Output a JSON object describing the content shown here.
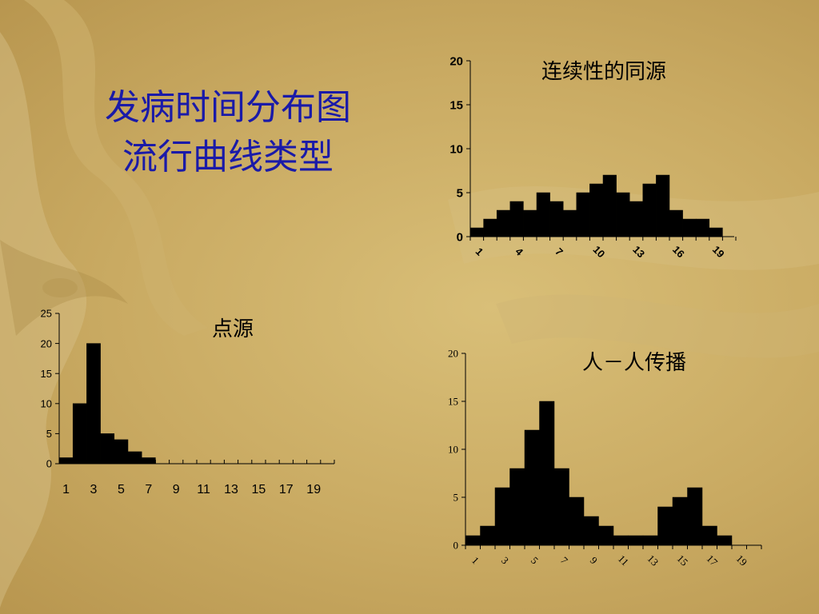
{
  "slide": {
    "title_line1": "发病时间分布图",
    "title_line2": "流行曲线类型"
  },
  "colors": {
    "bar": "#000000",
    "title": "#1a1aa8"
  },
  "chart_data": [
    {
      "id": "continuous",
      "type": "bar",
      "title": "连续性的同源",
      "categories": [
        1,
        2,
        3,
        4,
        5,
        6,
        7,
        8,
        9,
        10,
        11,
        12,
        13,
        14,
        15,
        16,
        17,
        18,
        19,
        20
      ],
      "tick_labels": [
        "1",
        "4",
        "7",
        "10",
        "13",
        "16",
        "19"
      ],
      "values": [
        1,
        2,
        3,
        4,
        3,
        5,
        4,
        3,
        5,
        6,
        7,
        5,
        4,
        6,
        7,
        3,
        2,
        2,
        1,
        0
      ],
      "ylim": [
        0,
        20
      ],
      "yticks": [
        0,
        5,
        10,
        15,
        20
      ]
    },
    {
      "id": "point",
      "type": "bar",
      "title": "点源",
      "categories": [
        1,
        2,
        3,
        4,
        5,
        6,
        7,
        8,
        9,
        10,
        11,
        12,
        13,
        14,
        15,
        16,
        17,
        18,
        19,
        20
      ],
      "tick_labels": [
        "1",
        "3",
        "5",
        "7",
        "9",
        "11",
        "13",
        "15",
        "17",
        "19"
      ],
      "values": [
        1,
        10,
        20,
        5,
        4,
        2,
        1,
        0,
        0,
        0,
        0,
        0,
        0,
        0,
        0,
        0,
        0,
        0,
        0,
        0
      ],
      "ylim": [
        0,
        25
      ],
      "yticks": [
        0,
        5,
        10,
        15,
        20,
        25
      ]
    },
    {
      "id": "person",
      "type": "bar",
      "title": "人－人传播",
      "categories": [
        1,
        2,
        3,
        4,
        5,
        6,
        7,
        8,
        9,
        10,
        11,
        12,
        13,
        14,
        15,
        16,
        17,
        18,
        19,
        20
      ],
      "tick_labels": [
        "1",
        "3",
        "5",
        "7",
        "9",
        "11",
        "13",
        "15",
        "17",
        "19"
      ],
      "values": [
        1,
        2,
        6,
        8,
        12,
        15,
        8,
        5,
        3,
        2,
        1,
        1,
        1,
        4,
        5,
        6,
        2,
        1,
        0,
        0
      ],
      "ylim": [
        0,
        20
      ],
      "yticks": [
        0,
        5,
        10,
        15,
        20
      ]
    }
  ]
}
